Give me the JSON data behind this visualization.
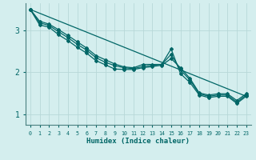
{
  "xlabel": "Humidex (Indice chaleur)",
  "ylabel": "",
  "bg_color": "#d4eeee",
  "grid_color": "#b8d8d8",
  "line_color": "#006666",
  "xlim": [
    -0.5,
    23.5
  ],
  "ylim": [
    0.75,
    3.65
  ],
  "yticks": [
    1,
    2,
    3
  ],
  "xticks": [
    0,
    1,
    2,
    3,
    4,
    5,
    6,
    7,
    8,
    9,
    10,
    11,
    12,
    13,
    14,
    15,
    16,
    17,
    18,
    19,
    20,
    21,
    22,
    23
  ],
  "series1_x": [
    0,
    1,
    2,
    3,
    4,
    5,
    6,
    7,
    8,
    9,
    10,
    11,
    12,
    13,
    14,
    15,
    16,
    17,
    18,
    19,
    20,
    21,
    22,
    23
  ],
  "series1_y": [
    3.5,
    3.22,
    3.15,
    3.02,
    2.88,
    2.73,
    2.58,
    2.4,
    2.3,
    2.2,
    2.13,
    2.11,
    2.19,
    2.19,
    2.19,
    2.56,
    1.97,
    1.76,
    1.46,
    1.4,
    1.43,
    1.43,
    1.26,
    1.43
  ],
  "series2_x": [
    0,
    1,
    2,
    3,
    4,
    5,
    6,
    7,
    8,
    9,
    10,
    11,
    12,
    13,
    14,
    15,
    16,
    17,
    18,
    19,
    20,
    21,
    22,
    23
  ],
  "series2_y": [
    3.5,
    3.18,
    3.12,
    2.97,
    2.83,
    2.67,
    2.53,
    2.35,
    2.24,
    2.16,
    2.11,
    2.09,
    2.14,
    2.17,
    2.19,
    2.43,
    2.06,
    1.82,
    1.49,
    1.43,
    1.46,
    1.46,
    1.29,
    1.46
  ],
  "series3_x": [
    0,
    1,
    2,
    3,
    4,
    5,
    6,
    7,
    8,
    9,
    10,
    11,
    12,
    13,
    14,
    15,
    16,
    17,
    18,
    19,
    20,
    21,
    22,
    23
  ],
  "series3_y": [
    3.5,
    3.13,
    3.08,
    2.9,
    2.76,
    2.6,
    2.46,
    2.28,
    2.18,
    2.08,
    2.07,
    2.07,
    2.11,
    2.14,
    2.17,
    2.33,
    2.11,
    1.86,
    1.51,
    1.46,
    1.49,
    1.49,
    1.33,
    1.49
  ],
  "trend_x": [
    0,
    23
  ],
  "trend_y": [
    3.5,
    1.43
  ],
  "marker": "D",
  "markersize": 2.0,
  "linewidth": 0.9
}
